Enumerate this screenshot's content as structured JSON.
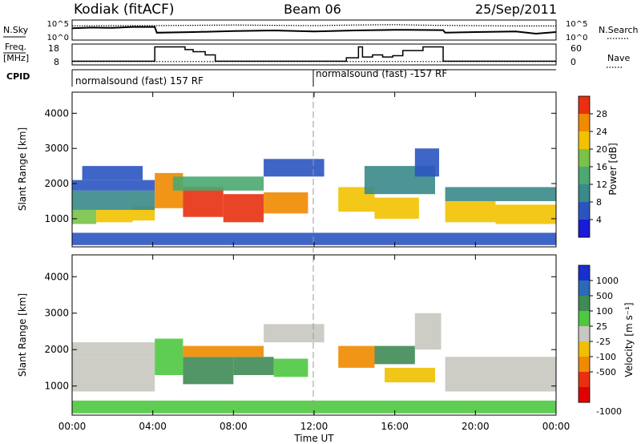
{
  "header": {
    "station": "Kodiak (fitACF)",
    "beam": "Beam 06",
    "date": "25/Sep/2011"
  },
  "labels": {
    "nsky": "N.Sky",
    "nsearch": "N.Search",
    "freq": "Freq.",
    "freq_unit": "[MHz]",
    "nave": "Nave",
    "cpid": "CPID",
    "cpid_left": "normalsound (fast) 157 RF",
    "cpid_right": "normalsound (fast) -157 RF",
    "ylabel": "Slant Range [km]",
    "xlabel": "Time UT",
    "power_cb": "Power [dB]",
    "velocity_cb": "Velocity [m s⁻¹]"
  },
  "ticks": {
    "noise_left": [
      "10^5",
      "10^0"
    ],
    "noise_right": [
      "10^5",
      "10^0"
    ],
    "freq_left": [
      "18",
      "8"
    ],
    "nave_right": [
      "60",
      "0"
    ],
    "range": [
      "4000",
      "3000",
      "2000",
      "1000"
    ],
    "time": [
      "00:00",
      "04:00",
      "08:00",
      "12:00",
      "16:00",
      "20:00",
      "00:00"
    ],
    "power": [
      "28",
      "24",
      "20",
      "16",
      "12",
      "8",
      "4"
    ],
    "velocity": [
      "1000",
      "500",
      "100",
      "25",
      "-25",
      "-100",
      "-500",
      "-1000"
    ]
  },
  "chart_data": [
    {
      "type": "line",
      "panel": "noise",
      "x_unit": "hours UT",
      "series": [
        {
          "name": "N.Sky",
          "x": [
            0,
            1,
            2,
            3,
            4.1,
            4.2,
            6,
            8,
            10,
            12,
            14,
            16,
            18.4,
            18.5,
            20,
            22,
            23,
            24
          ],
          "y": [
            3.2,
            3.4,
            3.3,
            3.6,
            3.6,
            1.8,
            2.0,
            2.3,
            2.5,
            2.2,
            2.5,
            2.7,
            2.6,
            1.8,
            2.0,
            2.2,
            1.5,
            2.0
          ]
        },
        {
          "name": "N.Search",
          "x": [
            0,
            2,
            4,
            6,
            8,
            10,
            12,
            14,
            16,
            18,
            20,
            22,
            24
          ],
          "y": [
            3.9,
            4.0,
            4.0,
            4.1,
            4.2,
            4.1,
            4.0,
            4.2,
            4.3,
            4.1,
            4.0,
            3.9,
            3.9
          ]
        }
      ]
    },
    {
      "type": "line",
      "panel": "freq-nave",
      "x_unit": "hours UT",
      "ylim_freq": [
        8,
        18
      ],
      "ylim_nave": [
        0,
        60
      ],
      "series": [
        {
          "name": "Freq.",
          "x": [
            0,
            4.1,
            4.1,
            5.6,
            5.6,
            6,
            6,
            6.6,
            6.6,
            7.1,
            7.1,
            13.6,
            13.6,
            14.2,
            14.2,
            14.4,
            14.4,
            14.9,
            14.9,
            15.4,
            15.4,
            15.9,
            15.9,
            16.4,
            16.4,
            17.4,
            17.4,
            18.4,
            18.4,
            24
          ],
          "y": [
            9.2,
            9.2,
            17.3,
            17.3,
            15.8,
            15.8,
            14.6,
            14.6,
            12.8,
            12.8,
            9.2,
            9.2,
            11.1,
            11.1,
            17.3,
            17.3,
            11.6,
            11.6,
            12.8,
            12.8,
            11.6,
            11.6,
            12.3,
            12.3,
            15.2,
            15.2,
            17.3,
            17.3,
            9.2,
            9.2
          ]
        },
        {
          "name": "Nave",
          "x": [
            0,
            24
          ],
          "y": [
            6,
            6
          ]
        }
      ]
    },
    {
      "type": "heatmap",
      "panel": "power",
      "x_unit": "hours UT",
      "xlim": [
        0,
        24
      ],
      "ylim": [
        200,
        4600
      ],
      "zlabel": "Power [dB]",
      "zlim": [
        0,
        32
      ],
      "colors": [
        "#1a1ad9",
        "#2a55c0",
        "#3a8a8a",
        "#4aa870",
        "#7ac248",
        "#f2c200",
        "#f08a00",
        "#e83010",
        "#e00000"
      ],
      "blocks": [
        {
          "x0": 0.0,
          "x1": 1.2,
          "y0": 850,
          "y1": 1250,
          "v": 16
        },
        {
          "x0": 1.2,
          "x1": 3.0,
          "y0": 900,
          "y1": 1250,
          "v": 18
        },
        {
          "x0": 3.0,
          "x1": 4.1,
          "y0": 950,
          "y1": 1350,
          "v": 20
        },
        {
          "x0": 0.0,
          "x1": 4.1,
          "y0": 1250,
          "y1": 1800,
          "v": 9
        },
        {
          "x0": 0.0,
          "x1": 4.1,
          "y0": 1800,
          "y1": 2100,
          "v": 6
        },
        {
          "x0": 0.5,
          "x1": 3.5,
          "y0": 2100,
          "y1": 2500,
          "v": 5
        },
        {
          "x0": 4.1,
          "x1": 5.5,
          "y0": 1300,
          "y1": 2300,
          "v": 22
        },
        {
          "x0": 5.5,
          "x1": 7.5,
          "y0": 1050,
          "y1": 1900,
          "v": 25
        },
        {
          "x0": 7.5,
          "x1": 9.5,
          "y0": 900,
          "y1": 1700,
          "v": 26
        },
        {
          "x0": 9.5,
          "x1": 11.7,
          "y0": 1150,
          "y1": 1750,
          "v": 22
        },
        {
          "x0": 5.0,
          "x1": 9.5,
          "y0": 1800,
          "y1": 2200,
          "v": 11
        },
        {
          "x0": 9.5,
          "x1": 12.5,
          "y0": 2200,
          "y1": 2700,
          "v": 6
        },
        {
          "x0": 13.2,
          "x1": 15.0,
          "y0": 1200,
          "y1": 1900,
          "v": 21
        },
        {
          "x0": 15.0,
          "x1": 17.2,
          "y0": 1000,
          "y1": 1600,
          "v": 19
        },
        {
          "x0": 14.5,
          "x1": 18.0,
          "y0": 1700,
          "y1": 2500,
          "v": 10
        },
        {
          "x0": 17.0,
          "x1": 18.2,
          "y0": 2200,
          "y1": 3000,
          "v": 7
        },
        {
          "x0": 18.5,
          "x1": 21.0,
          "y0": 900,
          "y1": 1500,
          "v": 18
        },
        {
          "x0": 21.0,
          "x1": 24.0,
          "y0": 850,
          "y1": 1400,
          "v": 21
        },
        {
          "x0": 18.5,
          "x1": 24.0,
          "y0": 1500,
          "y1": 1900,
          "v": 8
        },
        {
          "x0": 0.0,
          "x1": 24.0,
          "y0": 250,
          "y1": 600,
          "v": 5
        }
      ]
    },
    {
      "type": "heatmap",
      "panel": "velocity",
      "x_unit": "hours UT",
      "xlim": [
        0,
        24
      ],
      "ylim": [
        200,
        4600
      ],
      "zlabel": "Velocity [m s⁻¹]",
      "colors": [
        "#1a2fd0",
        "#2a6ab8",
        "#3f8a55",
        "#4ec840",
        "#c8c8c0",
        "#f0c000",
        "#f08a00",
        "#e83010",
        "#e00000"
      ],
      "blocks": [
        {
          "x0": 0.0,
          "x1": 4.1,
          "y0": 850,
          "y1": 1800,
          "v": 0
        },
        {
          "x0": 0.0,
          "x1": 4.1,
          "y0": 1800,
          "y1": 2200,
          "v": 0
        },
        {
          "x0": 4.1,
          "x1": 5.5,
          "y0": 1300,
          "y1": 2300,
          "v": 60
        },
        {
          "x0": 5.5,
          "x1": 8.0,
          "y0": 1050,
          "y1": 1800,
          "v": 150
        },
        {
          "x0": 8.0,
          "x1": 10.0,
          "y0": 1300,
          "y1": 1800,
          "v": 200
        },
        {
          "x0": 10.0,
          "x1": 11.7,
          "y0": 1250,
          "y1": 1750,
          "v": 80
        },
        {
          "x0": 5.5,
          "x1": 9.5,
          "y0": 1800,
          "y1": 2100,
          "v": -300
        },
        {
          "x0": 9.5,
          "x1": 12.5,
          "y0": 2200,
          "y1": 2700,
          "v": 0
        },
        {
          "x0": 13.2,
          "x1": 15.0,
          "y0": 1500,
          "y1": 2100,
          "v": -200
        },
        {
          "x0": 15.0,
          "x1": 17.0,
          "y0": 1600,
          "y1": 2100,
          "v": 300
        },
        {
          "x0": 15.5,
          "x1": 18.0,
          "y0": 1100,
          "y1": 1500,
          "v": -80
        },
        {
          "x0": 17.0,
          "x1": 18.3,
          "y0": 2000,
          "y1": 3000,
          "v": 0
        },
        {
          "x0": 18.5,
          "x1": 24.0,
          "y0": 850,
          "y1": 1800,
          "v": 0
        },
        {
          "x0": 0.0,
          "x1": 24.0,
          "y0": 250,
          "y1": 600,
          "v": 60
        }
      ]
    }
  ]
}
